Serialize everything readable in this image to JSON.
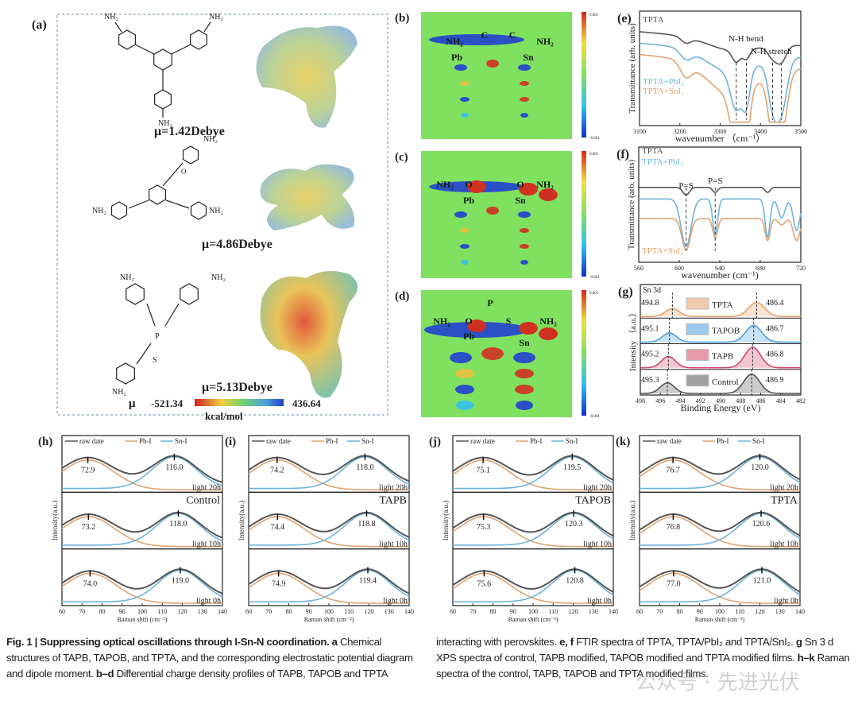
{
  "panel_a": {
    "label": "(a)",
    "amine": "NH₂",
    "mu_values": [
      "μ=1.42Debye",
      "μ=4.86Debye",
      "μ=5.13Debye"
    ],
    "tpta_atoms": {
      "P": "P",
      "S": "S",
      "O": "O"
    },
    "colorbar": {
      "symbol": "μ",
      "min": "-521.34",
      "unit": "kcal/mol",
      "max": "436.64"
    }
  },
  "charge_maps": [
    {
      "label": "(b)",
      "atoms": [
        "NH₂",
        "C",
        "C",
        "NH₂",
        "Pb",
        "Sn"
      ],
      "cb_max": "0.001",
      "cb_min": "-0.001"
    },
    {
      "label": "(c)",
      "atoms": [
        "NH₂",
        "O",
        "O",
        "NH₂",
        "Pb",
        "Sn"
      ],
      "cb_max": "0.001",
      "cb_min": "-0.001"
    },
    {
      "label": "(d)",
      "atoms": [
        "NH₂",
        "O",
        "P",
        "S",
        "NH₂",
        "Pb",
        "Sn"
      ],
      "cb_max": "0.001",
      "cb_min": "-0.001"
    }
  ],
  "chart_data": [
    {
      "id": "e",
      "label": "(e)",
      "type": "line",
      "xlabel": "wavenumber （cm⁻¹）",
      "ylabel": "Transmittance (arb. units)",
      "xlim": [
        3100,
        3500
      ],
      "xticks": [
        "3100",
        "3200",
        "3300",
        "3400",
        "3500"
      ],
      "annotations": [
        "N-H bend",
        "N-H stretch"
      ],
      "dashed_x": [
        3340,
        3365,
        3430,
        3452
      ],
      "series": [
        {
          "name": "TPTA",
          "color": "#555555",
          "dips": [
            [
              3215,
              0.05,
              12
            ],
            [
              3340,
              0.1,
              10
            ],
            [
              3365,
              0.08,
              8
            ],
            [
              3430,
              0.1,
              12
            ],
            [
              3452,
              0.14,
              12
            ]
          ]
        },
        {
          "name": "TPTA+PbI₂",
          "color": "#6fb3db",
          "dips": [
            [
              3215,
              0.08,
              14
            ],
            [
              3340,
              0.32,
              14
            ],
            [
              3365,
              0.28,
              9
            ],
            [
              3430,
              0.35,
              12
            ],
            [
              3452,
              0.45,
              14
            ]
          ]
        },
        {
          "name": "TPTA+SnI₂",
          "color": "#e0a370",
          "dips": [
            [
              3215,
              0.12,
              14
            ],
            [
              3340,
              0.45,
              14
            ],
            [
              3365,
              0.4,
              9
            ],
            [
              3430,
              0.45,
              12
            ],
            [
              3452,
              0.55,
              14
            ]
          ]
        }
      ]
    },
    {
      "id": "f",
      "label": "(f)",
      "type": "line",
      "xlabel": "wavenumber (cm⁻¹)",
      "ylabel": "Transmittance (arb. units)",
      "xlim": [
        550,
        745
      ],
      "xticks": [
        "560",
        "600",
        "640",
        "680",
        "720"
      ],
      "annotations": [
        "P=S",
        "P=S"
      ],
      "dashed_x": [
        607,
        642
      ],
      "series": [
        {
          "name": "TPTA",
          "color": "#555555",
          "dips": [
            [
              607,
              0.12,
              4
            ],
            [
              642,
              0.08,
              3
            ],
            [
              705,
              0.08,
              3
            ]
          ]
        },
        {
          "name": "TPTA+PbI₂",
          "color": "#6fb3db",
          "dips": [
            [
              607,
              0.75,
              6
            ],
            [
              642,
              0.55,
              3
            ],
            [
              705,
              0.6,
              3
            ],
            [
              722,
              0.3,
              4
            ],
            [
              740,
              0.5,
              4
            ]
          ]
        },
        {
          "name": "TPTA+SnI₂",
          "color": "#e0a370",
          "dips": [
            [
              607,
              0.5,
              5
            ],
            [
              642,
              0.3,
              3
            ],
            [
              705,
              0.35,
              3
            ],
            [
              722,
              0.1,
              4
            ],
            [
              740,
              0.35,
              4
            ]
          ]
        }
      ]
    },
    {
      "id": "g",
      "label": "(g)",
      "type": "area",
      "title": "Sn 3d",
      "xlabel": "Binding Energy (eV)",
      "ylabel": "Intensity （a.u.）",
      "xlim": [
        498,
        482
      ],
      "xticks": [
        "498",
        "496",
        "494",
        "492",
        "490",
        "488",
        "486",
        "484",
        "482"
      ],
      "series": [
        {
          "name": "TPTA",
          "color": "#e8a068",
          "peaks": [
            494.8,
            486.4
          ],
          "labels": [
            "494.8",
            "486.4"
          ]
        },
        {
          "name": "TAPOB",
          "color": "#4a9ee0",
          "peaks": [
            495.1,
            486.7
          ],
          "labels": [
            "495.1",
            "486.7"
          ]
        },
        {
          "name": "TAPB",
          "color": "#d04868",
          "peaks": [
            495.2,
            486.8
          ],
          "labels": [
            "495.2",
            "486.8"
          ]
        },
        {
          "name": "Control",
          "color": "#555555",
          "peaks": [
            495.3,
            486.9
          ],
          "labels": [
            "495.3",
            "486.9"
          ]
        }
      ]
    },
    {
      "id": "h",
      "label": "(h)",
      "type": "line",
      "sample": "Control",
      "xlabel": "Raman shift (cm⁻²)",
      "ylabel": "Intensity(a.u.)",
      "xlim": [
        60,
        140
      ],
      "xticks": [
        "60",
        "70",
        "80",
        "90",
        "100",
        "110",
        "120",
        "130",
        "140"
      ],
      "legend": [
        "raw date",
        "Pb-I",
        "Sn-I"
      ],
      "rows": [
        {
          "time": "light 20h",
          "pb": 72.9,
          "sn": 116.0,
          "pb_label": "72.9",
          "sn_label": "116.0"
        },
        {
          "time": "light 10h",
          "pb": 73.2,
          "sn": 118.0,
          "pb_label": "73.2",
          "sn_label": "118.0"
        },
        {
          "time": "light 0h",
          "pb": 74.0,
          "sn": 119.0,
          "pb_label": "74.0",
          "sn_label": "119.0"
        }
      ]
    },
    {
      "id": "i",
      "label": "(i)",
      "type": "line",
      "sample": "TAPB",
      "xlabel": "Raman shift (cm⁻²)",
      "ylabel": "Intensity(a.u.)",
      "xlim": [
        60,
        140
      ],
      "xticks": [
        "60",
        "70",
        "80",
        "90",
        "100",
        "110",
        "120",
        "130",
        "140"
      ],
      "legend": [
        "raw date",
        "Pb-I",
        "Sn-I"
      ],
      "rows": [
        {
          "time": "light 20h",
          "pb": 74.2,
          "sn": 118.0,
          "pb_label": "74.2",
          "sn_label": "118.0"
        },
        {
          "time": "light 10h",
          "pb": 74.4,
          "sn": 118.8,
          "pb_label": "74.4",
          "sn_label": "118.8"
        },
        {
          "time": "light 0h",
          "pb": 74.9,
          "sn": 119.4,
          "pb_label": "74.9",
          "sn_label": "119.4"
        }
      ]
    },
    {
      "id": "j",
      "label": "(j)",
      "type": "line",
      "sample": "TAPOB",
      "xlabel": "Raman shift (cm⁻²)",
      "ylabel": "Intensity(a.u.)",
      "xlim": [
        60,
        140
      ],
      "xticks": [
        "60",
        "70",
        "80",
        "90",
        "100",
        "110",
        "120",
        "130",
        "140"
      ],
      "legend": [
        "raw date",
        "Pb-I",
        "Sn-I"
      ],
      "rows": [
        {
          "time": "light 20h",
          "pb": 75.1,
          "sn": 119.5,
          "pb_label": "75.1",
          "sn_label": "119.5"
        },
        {
          "time": "light 10h",
          "pb": 75.3,
          "sn": 120.3,
          "pb_label": "75.3",
          "sn_label": "120.3"
        },
        {
          "time": "light 0h",
          "pb": 75.6,
          "sn": 120.8,
          "pb_label": "75.6",
          "sn_label": "120.8"
        }
      ]
    },
    {
      "id": "k",
      "label": "(k)",
      "type": "line",
      "sample": "TPTA",
      "xlabel": "Raman shift (cm⁻²)",
      "ylabel": "Intensity(a.u.)",
      "xlim": [
        60,
        140
      ],
      "xticks": [
        "60",
        "70",
        "80",
        "90",
        "100",
        "110",
        "120",
        "130",
        "140"
      ],
      "legend": [
        "raw date",
        "Pb-I",
        "Sn-I"
      ],
      "rows": [
        {
          "time": "light 20h",
          "pb": 76.7,
          "sn": 120.0,
          "pb_label": "76.7",
          "sn_label": "120.0"
        },
        {
          "time": "light 10h",
          "pb": 76.8,
          "sn": 120.6,
          "pb_label": "76.8",
          "sn_label": "120.6"
        },
        {
          "time": "light 0h",
          "pb": 77.0,
          "sn": 121.0,
          "pb_label": "77.0",
          "sn_label": "121.0"
        }
      ]
    }
  ],
  "colors": {
    "raw": "#555555",
    "pbi": "#e0a370",
    "sni": "#6fb3db"
  },
  "caption": {
    "segments": [
      {
        "bold": true,
        "text": "Fig. 1 | Suppressing optical oscillations through I-Sn-N coordination."
      },
      {
        "bold": true,
        "text": " a"
      },
      {
        "bold": false,
        "text": " Chemical structures of TAPB, TAPOB, and TPTA, and the corresponding electrostatic potential diagram and dipole moment. "
      },
      {
        "bold": true,
        "text": "b–d"
      },
      {
        "bold": false,
        "text": " Differential charge density profiles of TAPB, TAPOB and TPTA interacting with perovskites. "
      },
      {
        "bold": true,
        "text": "e, f"
      },
      {
        "bold": false,
        "text": " FTIR spectra of TPTA, TPTA/PbI₂ and TPTA/SnI₂. "
      },
      {
        "bold": true,
        "text": "g"
      },
      {
        "bold": false,
        "text": " Sn 3 d XPS spectra of control, TAPB modified, TAPOB modified and TPTA modified films. "
      },
      {
        "bold": true,
        "text": "h–k"
      },
      {
        "bold": false,
        "text": " Raman spectra of the control, TAPB, TAPOB and TPTA modified films."
      }
    ]
  },
  "watermark": "公众号 · 先进光伏"
}
